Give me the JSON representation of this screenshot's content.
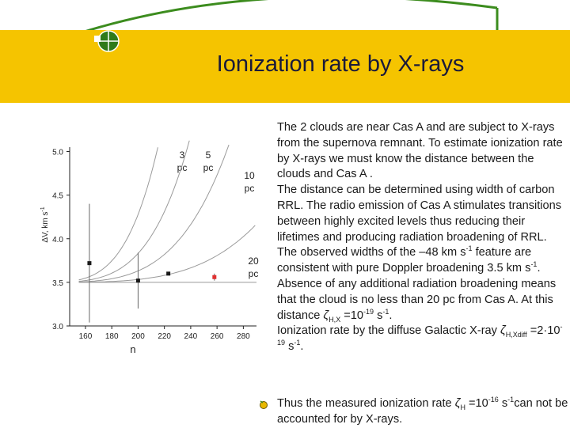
{
  "slide": {
    "title": "Ionization rate by X-rays",
    "paragraphs": [
      "The 2 clouds are near Cas A and are subject to X-rays from the supernova remnant. To estimate ionization rate by X-rays we must know the distance between the clouds and Cas A .",
      "The distance can be determined using width of carbon RRL. The radio emission of Cas A stimulates transitions between highly excited levels thus reducing their lifetimes and producing radiation broadening of RRL."
    ],
    "p3": {
      "a": "The observed widths of the –48 km s",
      "sup1": "-1",
      "b": " feature are consistent with pure Doppler broadening 3.5 km s",
      "sup2": "-1",
      "c": "."
    },
    "p4": {
      "a": "Absence of any additional radiation broadening means that the cloud is no less than 20 pc from Cas A. At this distance ",
      "zeta": "ζ",
      "sub": "H,X",
      "b": " =10",
      "sup1": "-19",
      "c": " s",
      "sup2": "-1",
      "d": "."
    },
    "p5": {
      "a": "Ionization rate by the diffuse Galactic X-ray ",
      "zeta": "ζ",
      "sub": "H,Xdiff",
      "b": " =2",
      "dot": "·",
      "c": "10",
      "sup1": "-19",
      "d": " s",
      "sup2": "-1",
      "e": "."
    },
    "conclusion": {
      "a": "Thus the measured ionization rate ",
      "zeta": "ζ",
      "sub": "H",
      "b": " =10",
      "sup1": "-16",
      "c": " s",
      "sup2": "-1",
      "d": "can not be accounted for by X-rays."
    },
    "bullet_icon": "bullet-dot-icon",
    "colors": {
      "band": "#f5c400",
      "green": "#3c8c1e",
      "point_red": "#e03030"
    }
  },
  "chart_data": {
    "type": "scatter",
    "xlabel": "n",
    "ylabel": "ΔV, km s",
    "ylabel_sup": "-1",
    "xlim": [
      148,
      290
    ],
    "ylim": [
      3.0,
      5.05
    ],
    "x_ticks": [
      "160",
      "180",
      "200",
      "220",
      "240",
      "260",
      "280"
    ],
    "y_ticks": [
      "3.0",
      "3.5",
      "4.0",
      "4.5",
      "5.0"
    ],
    "curve_labels": [
      {
        "top": "3",
        "bottom": "pc"
      },
      {
        "top": "5",
        "bottom": "pc"
      },
      {
        "top": "10",
        "bottom": "pc"
      },
      {
        "top": "20",
        "bottom": "pc"
      }
    ],
    "points": [
      {
        "x": 163,
        "y": 3.72,
        "err": 0.68,
        "color": "#1a1a1a"
      },
      {
        "x": 200,
        "y": 3.52,
        "err": 0.32,
        "color": "#1a1a1a"
      },
      {
        "x": 223,
        "y": 3.6,
        "err": 0.0,
        "color": "#1a1a1a"
      },
      {
        "x": 258,
        "y": 3.56,
        "err": 0.04,
        "color": "#e03030"
      }
    ],
    "base": 3.5,
    "curves": [
      {
        "coef": 1.9e-08,
        "pow": 4
      },
      {
        "coef": 8.1e-09,
        "pow": 4
      },
      {
        "coef": 3.2e-09,
        "pow": 4
      },
      {
        "coef": 8e-10,
        "pow": 4
      }
    ]
  }
}
